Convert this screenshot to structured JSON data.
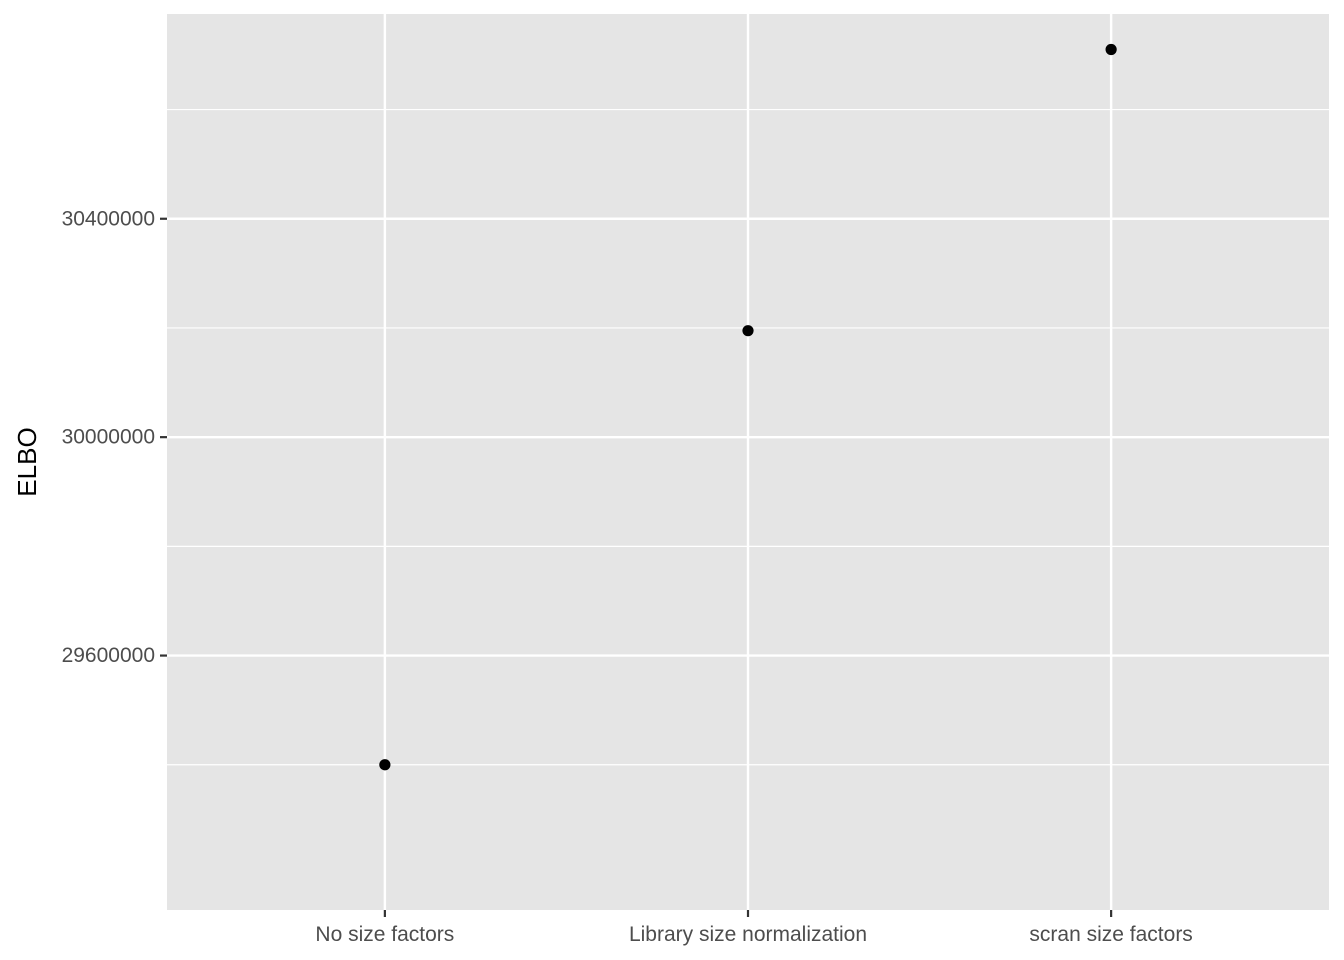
{
  "chart_data": {
    "type": "scatter",
    "title": "",
    "xlabel": "",
    "ylabel": "ELBO",
    "categories": [
      "No size factors",
      "Library size normalization",
      "scran size factors"
    ],
    "values": [
      29400000,
      30195000,
      30710000
    ],
    "ylim": [
      29134000,
      30775000
    ],
    "y_major_ticks": [
      29600000,
      30000000,
      30400000
    ],
    "y_tick_labels": [
      "29600000",
      "30000000",
      "30400000"
    ],
    "y_minor_ticks": [
      29400000,
      29800000,
      30200000,
      30600000
    ],
    "grid": true,
    "legend": "none",
    "colors": {
      "panel": "#e5e5e5",
      "grid": "#ffffff",
      "point": "#000000",
      "tick_text": "#4d4d4d",
      "tick_mark": "#333333"
    }
  }
}
